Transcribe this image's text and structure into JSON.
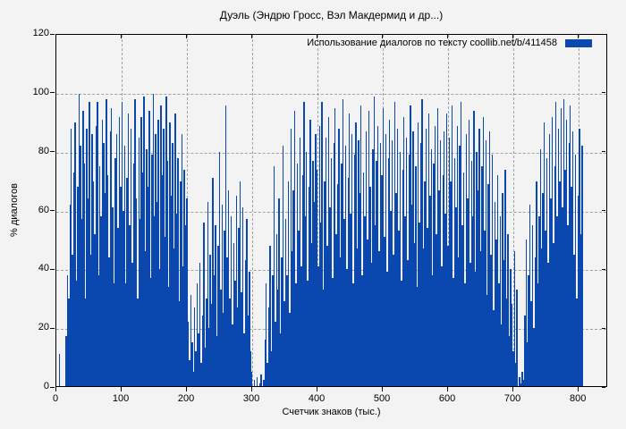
{
  "page": {
    "background": "#f3f3f3"
  },
  "chart_data": {
    "type": "bar",
    "style": "impulses",
    "title": "Дуэль (Эндрю Гросс, Вэл Макдермид и др...)",
    "legend_label": "Использование диалогов по тексту  coollib.net/b/411458",
    "legend_position": "top-right",
    "xlabel": "Счетчик знаков (тыс.)",
    "ylabel": "% диалогов",
    "xlim": [
      0,
      845
    ],
    "ylim": [
      0,
      120
    ],
    "xticks": [
      0,
      100,
      200,
      300,
      400,
      500,
      600,
      700,
      800
    ],
    "yticks": [
      0,
      20,
      40,
      60,
      80,
      100,
      120
    ],
    "grid": true,
    "colors": {
      "bar": "#0a47ae",
      "grid": "#a2a2a2",
      "background": "#f3f3f3",
      "border": "#000000",
      "text": "#000000"
    },
    "x_start": 0,
    "x_step": 2,
    "values": [
      0,
      0,
      11,
      0,
      0,
      0,
      0,
      17,
      38,
      30,
      62,
      88,
      45,
      73,
      90,
      36,
      68,
      100,
      82,
      57,
      94,
      76,
      30,
      88,
      64,
      97,
      45,
      86,
      70,
      52,
      89,
      97,
      38,
      75,
      58,
      91,
      83,
      66,
      98,
      72,
      44,
      87,
      95,
      61,
      35,
      78,
      86,
      54,
      92,
      68,
      97,
      60,
      82,
      35,
      71,
      93,
      55,
      88,
      42,
      76,
      98,
      64,
      30,
      85,
      57,
      92,
      73,
      99,
      46,
      81,
      68,
      94,
      37,
      79,
      100,
      58,
      86,
      63,
      91,
      40,
      96,
      72,
      88,
      51,
      99,
      77,
      34,
      90,
      65,
      83,
      47,
      93,
      59,
      78,
      29,
      70,
      86,
      41,
      74,
      55,
      64,
      22,
      9,
      31,
      15,
      5,
      27,
      12,
      35,
      18,
      42,
      8,
      24,
      56,
      13,
      30,
      63,
      20,
      45,
      28,
      71,
      38,
      55,
      17,
      48,
      80,
      33,
      62,
      25,
      53,
      96,
      44,
      67,
      30,
      58,
      21,
      49,
      36,
      65,
      27,
      54,
      70,
      32,
      61,
      18,
      43,
      57,
      24,
      39,
      12,
      5,
      0,
      2,
      0,
      3,
      0,
      1,
      4,
      0,
      2,
      16,
      35,
      8,
      27,
      48,
      12,
      38,
      75,
      22,
      52,
      33,
      64,
      18,
      44,
      82,
      29,
      57,
      38,
      70,
      25,
      88,
      46,
      67,
      94,
      35,
      76,
      53,
      85,
      41,
      72,
      97,
      58,
      80,
      36,
      68,
      91,
      49,
      77,
      63,
      86,
      74,
      41,
      89,
      56,
      97,
      33,
      70,
      85,
      48,
      92,
      61,
      78,
      37,
      83,
      95,
      52,
      69,
      88,
      44,
      76,
      98,
      57,
      82,
      40,
      71,
      93,
      59,
      86,
      35,
      79,
      90,
      47,
      84,
      66,
      96,
      38,
      73,
      58,
      87,
      50,
      94,
      68,
      42,
      81,
      99,
      55,
      77,
      89,
      46,
      83,
      72,
      95,
      51,
      86,
      39,
      78,
      91,
      60,
      84,
      45,
      97,
      66,
      88,
      53,
      80,
      36,
      74,
      92,
      58,
      85,
      43,
      79,
      96,
      62,
      87,
      49,
      75,
      34,
      90,
      56,
      83,
      98,
      47,
      70,
      88,
      54,
      93,
      65,
      81,
      38,
      76,
      89,
      52,
      95,
      67,
      84,
      41,
      72,
      87,
      59,
      93,
      48,
      85,
      70,
      96,
      37,
      78,
      61,
      89,
      44,
      82,
      97,
      55,
      73,
      35,
      86,
      64,
      91,
      42,
      77,
      58,
      94,
      39,
      80,
      67,
      88,
      46,
      75,
      92,
      53,
      84,
      31,
      69,
      87,
      45,
      79,
      26,
      63,
      50,
      72,
      35,
      58,
      21,
      66,
      43,
      74,
      30,
      52,
      17,
      40,
      28,
      12,
      46,
      8,
      33,
      0,
      3,
      1,
      5,
      2,
      24,
      50,
      15,
      38,
      62,
      29,
      55,
      20,
      44,
      70,
      35,
      58,
      81,
      47,
      66,
      90,
      53,
      78,
      42,
      86,
      64,
      92,
      49,
      75,
      97,
      58,
      88,
      70,
      95,
      61,
      98,
      74,
      91,
      55,
      83,
      96,
      68,
      87,
      45,
      79,
      30,
      65,
      88,
      52,
      82
    ]
  }
}
